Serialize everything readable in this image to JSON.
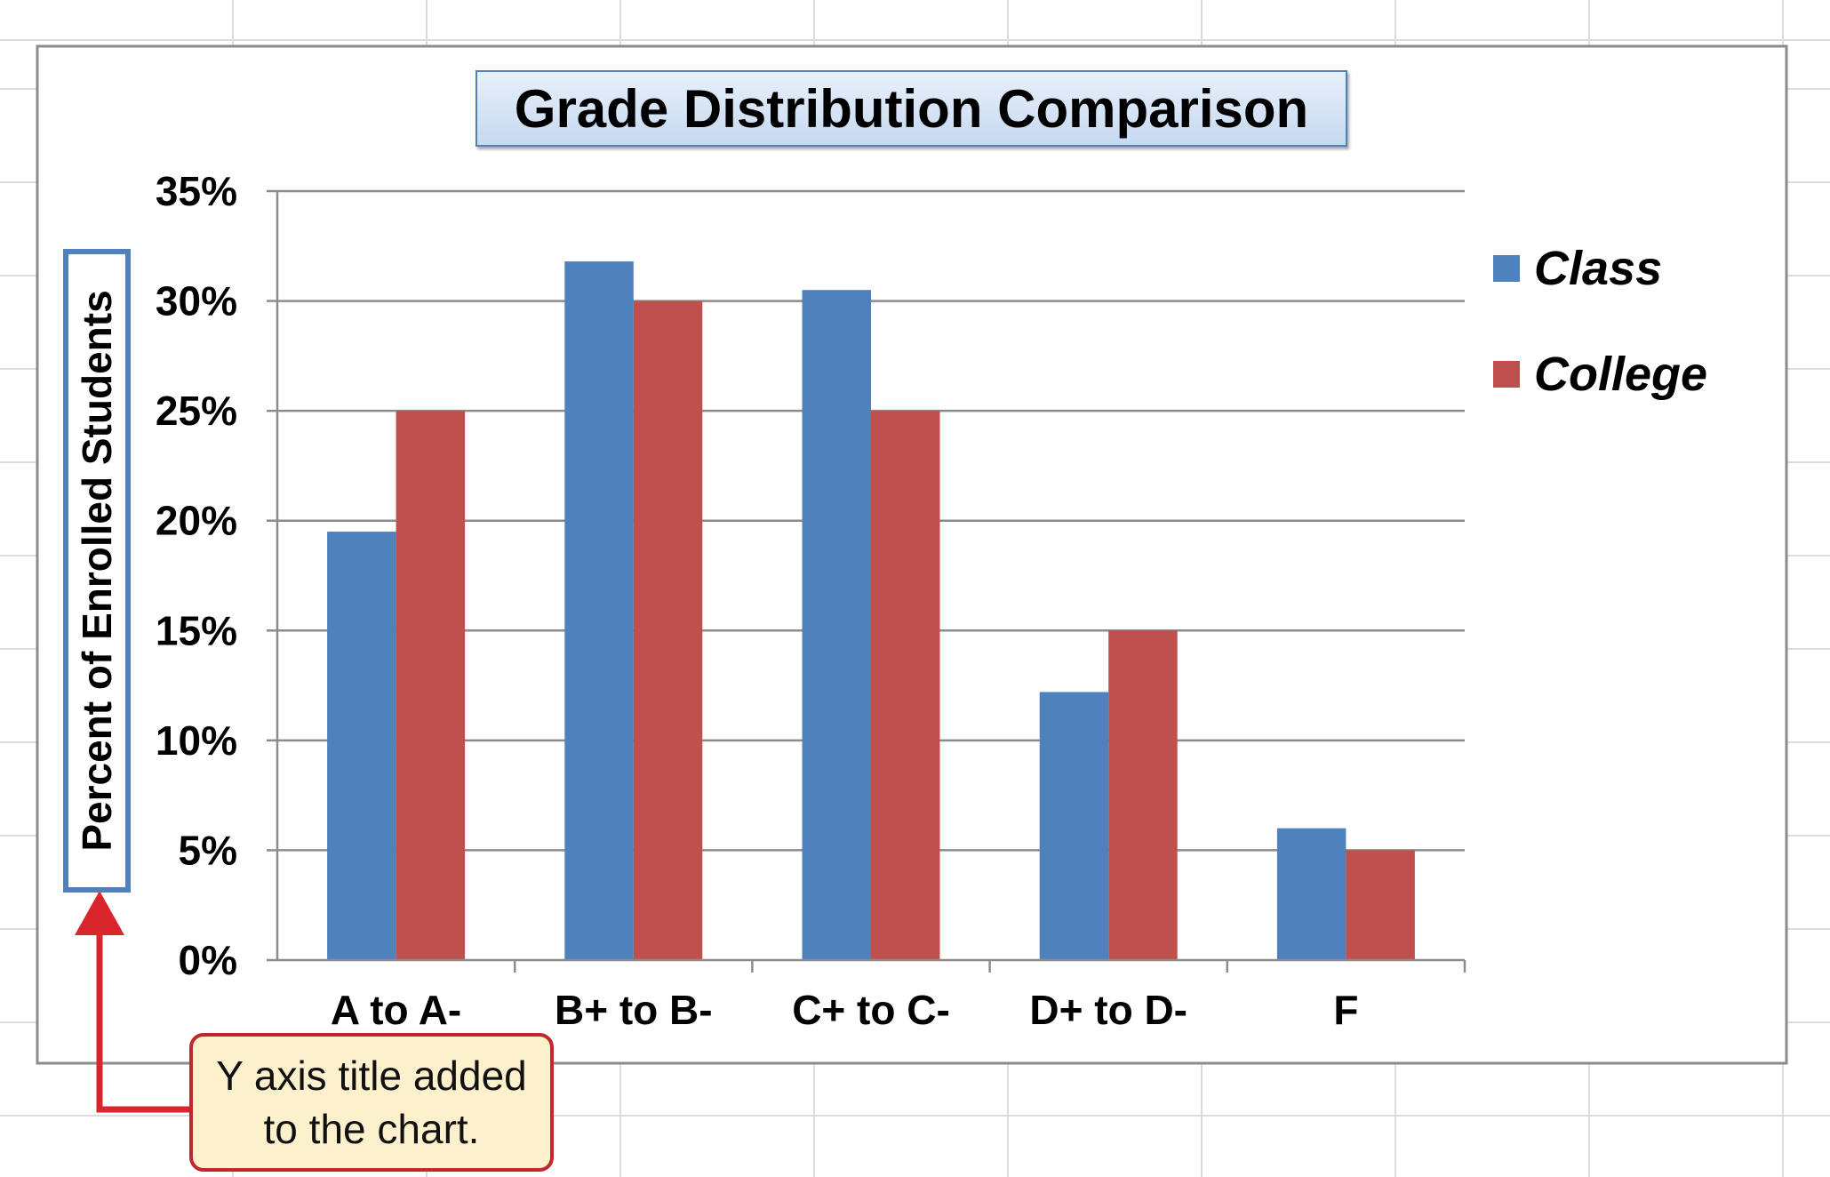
{
  "title": "Grade Distribution Comparison",
  "y_axis_title": "Percent of Enrolled Students",
  "callout": {
    "line1": "Y axis title added",
    "line2": "to the chart."
  },
  "colors": {
    "Class": "#4f81bd",
    "College": "#c0504d",
    "title_border": "#4f81bd",
    "callout_border": "#c0282d",
    "callout_fill": "#fdf1cd",
    "arrow": "#d9262c"
  },
  "legend": [
    {
      "name": "Class",
      "color": "#4f81bd"
    },
    {
      "name": "College",
      "color": "#c0504d"
    }
  ],
  "chart_data": {
    "type": "bar",
    "title": "Grade Distribution Comparison",
    "xlabel": "",
    "ylabel": "Percent of Enrolled Students",
    "categories": [
      "A to A-",
      "B+ to B-",
      "C+ to C-",
      "D+ to D-",
      "F"
    ],
    "series": [
      {
        "name": "Class",
        "values": [
          19.5,
          31.8,
          30.5,
          12.2,
          6.0
        ]
      },
      {
        "name": "College",
        "values": [
          25,
          30,
          25,
          15,
          5
        ]
      }
    ],
    "ylim": [
      0,
      35
    ],
    "yticks": [
      "0%",
      "5%",
      "10%",
      "15%",
      "20%",
      "25%",
      "30%",
      "35%"
    ],
    "grid": true,
    "legend_position": "right"
  }
}
